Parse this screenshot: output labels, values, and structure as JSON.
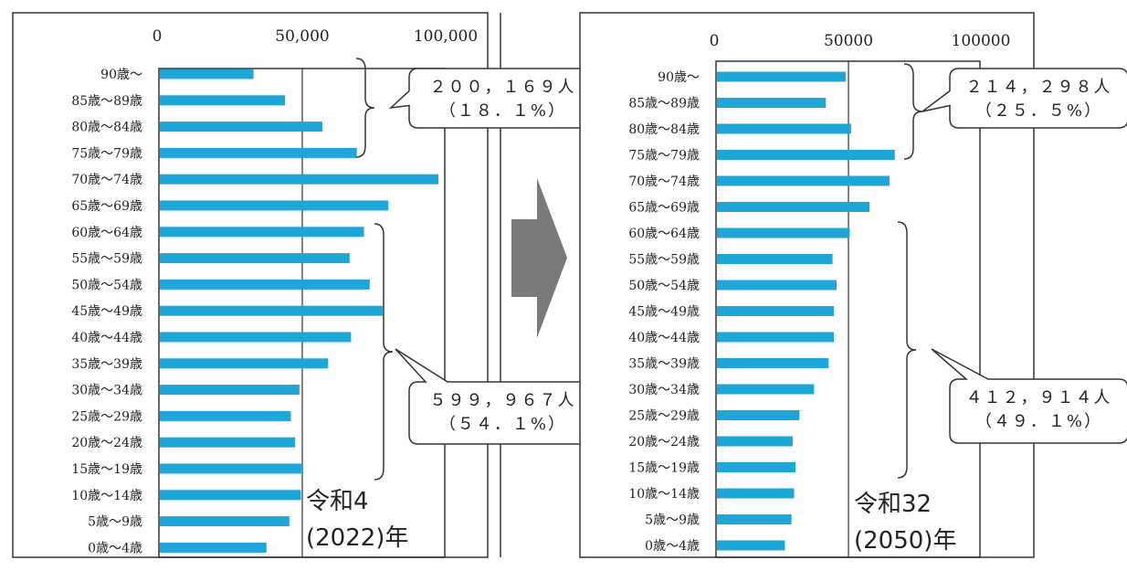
{
  "chart_data": [
    {
      "type": "bar",
      "orientation": "horizontal",
      "categories": [
        "90歳～",
        "85歳～89歳",
        "80歳～84歳",
        "75歳～79歳",
        "70歳～74歳",
        "65歳～69歳",
        "60歳～64歳",
        "55歳～59歳",
        "50歳～54歳",
        "45歳～49歳",
        "40歳～44歳",
        "35歳～39歳",
        "30歳～34歳",
        "25歳～29歳",
        "20歳～24歳",
        "15歳～19歳",
        "10歳～14歳",
        "5歳～9歳",
        "0歳～4歳"
      ],
      "values": [
        33000,
        44000,
        57000,
        69000,
        97500,
        80000,
        71500,
        66500,
        73500,
        78000,
        67000,
        59000,
        49000,
        46000,
        47500,
        50000,
        49500,
        45500,
        37500
      ],
      "xlim": [
        0,
        100000
      ],
      "xticks": [
        "0",
        "50,000",
        "100,000"
      ],
      "grid": "vertical line at 50,000",
      "color": "#1ea6d8",
      "year_label_line1": "令和4",
      "year_label_line2": "(2022)年",
      "callouts": [
        {
          "line1": "２００，１６９人",
          "line2": "（１８．１%）"
        },
        {
          "line1": "５９９，９６７人",
          "line2": "（５４．１%）"
        }
      ]
    },
    {
      "type": "bar",
      "orientation": "horizontal",
      "categories": [
        "90歳～",
        "85歳～89歳",
        "80歳～84歳",
        "75歳～79歳",
        "70歳～74歳",
        "65歳～69歳",
        "60歳～64歳",
        "55歳～59歳",
        "50歳～54歳",
        "45歳～49歳",
        "40歳～44歳",
        "35歳～39歳",
        "30歳～34歳",
        "25歳～29歳",
        "20歳～24歳",
        "15歳～19歳",
        "10歳～14歳",
        "5歳～9歳",
        "0歳～4歳"
      ],
      "values": [
        49000,
        41500,
        51000,
        67500,
        65500,
        58000,
        50500,
        44000,
        45500,
        44500,
        44500,
        42500,
        37000,
        31500,
        29000,
        30000,
        29500,
        28500,
        26000
      ],
      "xlim": [
        0,
        100000
      ],
      "xticks": [
        "0",
        "50000",
        "100000"
      ],
      "grid": "vertical line at 50000",
      "color": "#1ea6d8",
      "year_label_line1": "令和32",
      "year_label_line2": "(2050)年",
      "callouts": [
        {
          "line1": "２１４，２９８人",
          "line2": "（２５．５%）"
        },
        {
          "line1": "４１２，９１４人",
          "line2": "（４９．１%）"
        }
      ]
    }
  ],
  "arrow_color": "#7a7a7a"
}
